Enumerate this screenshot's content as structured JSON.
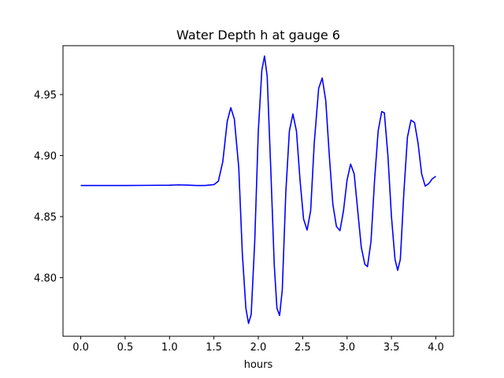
{
  "chart_data": {
    "type": "line",
    "title": "Water Depth h at gauge 6",
    "xlabel": "hours",
    "ylabel": "",
    "xlim": [
      -0.2,
      4.2
    ],
    "ylim": [
      4.752,
      4.99
    ],
    "xticks": [
      0.0,
      0.5,
      1.0,
      1.5,
      2.0,
      2.5,
      3.0,
      3.5,
      4.0
    ],
    "xtick_labels": [
      "0.0",
      "0.5",
      "1.0",
      "1.5",
      "2.0",
      "2.5",
      "3.0",
      "3.5",
      "4.0"
    ],
    "yticks": [
      4.8,
      4.85,
      4.9,
      4.95
    ],
    "ytick_labels": [
      "4.80",
      "4.85",
      "4.90",
      "4.95"
    ],
    "grid": false,
    "legend": "none",
    "series": [
      {
        "color": "#0000ff",
        "points": [
          [
            0.0,
            4.8755
          ],
          [
            0.25,
            4.8755
          ],
          [
            0.5,
            4.8755
          ],
          [
            0.75,
            4.8756
          ],
          [
            1.0,
            4.8757
          ],
          [
            1.1,
            4.876
          ],
          [
            1.2,
            4.8758
          ],
          [
            1.3,
            4.8755
          ],
          [
            1.4,
            4.8755
          ],
          [
            1.5,
            4.8762
          ],
          [
            1.55,
            4.879
          ],
          [
            1.6,
            4.895
          ],
          [
            1.65,
            4.928
          ],
          [
            1.69,
            4.9392
          ],
          [
            1.73,
            4.93
          ],
          [
            1.78,
            4.89
          ],
          [
            1.82,
            4.82
          ],
          [
            1.86,
            4.775
          ],
          [
            1.89,
            4.7625
          ],
          [
            1.92,
            4.77
          ],
          [
            1.96,
            4.83
          ],
          [
            2.0,
            4.92
          ],
          [
            2.04,
            4.97
          ],
          [
            2.07,
            4.9815
          ],
          [
            2.1,
            4.965
          ],
          [
            2.14,
            4.89
          ],
          [
            2.18,
            4.81
          ],
          [
            2.21,
            4.775
          ],
          [
            2.24,
            4.769
          ],
          [
            2.27,
            4.79
          ],
          [
            2.31,
            4.87
          ],
          [
            2.35,
            4.92
          ],
          [
            2.39,
            4.934
          ],
          [
            2.43,
            4.92
          ],
          [
            2.47,
            4.88
          ],
          [
            2.51,
            4.848
          ],
          [
            2.55,
            4.839
          ],
          [
            2.59,
            4.855
          ],
          [
            2.63,
            4.91
          ],
          [
            2.68,
            4.955
          ],
          [
            2.72,
            4.9635
          ],
          [
            2.76,
            4.945
          ],
          [
            2.8,
            4.9
          ],
          [
            2.84,
            4.86
          ],
          [
            2.88,
            4.842
          ],
          [
            2.92,
            4.8385
          ],
          [
            2.96,
            4.855
          ],
          [
            3.0,
            4.88
          ],
          [
            3.04,
            4.893
          ],
          [
            3.08,
            4.885
          ],
          [
            3.12,
            4.855
          ],
          [
            3.16,
            4.825
          ],
          [
            3.2,
            4.811
          ],
          [
            3.23,
            4.809
          ],
          [
            3.27,
            4.83
          ],
          [
            3.31,
            4.88
          ],
          [
            3.35,
            4.92
          ],
          [
            3.39,
            4.936
          ],
          [
            3.42,
            4.935
          ],
          [
            3.46,
            4.9
          ],
          [
            3.5,
            4.85
          ],
          [
            3.54,
            4.815
          ],
          [
            3.57,
            4.806
          ],
          [
            3.6,
            4.815
          ],
          [
            3.64,
            4.87
          ],
          [
            3.68,
            4.915
          ],
          [
            3.72,
            4.929
          ],
          [
            3.76,
            4.927
          ],
          [
            3.8,
            4.91
          ],
          [
            3.84,
            4.885
          ],
          [
            3.88,
            4.875
          ],
          [
            3.92,
            4.877
          ],
          [
            3.96,
            4.881
          ],
          [
            4.0,
            4.883
          ]
        ]
      }
    ]
  }
}
